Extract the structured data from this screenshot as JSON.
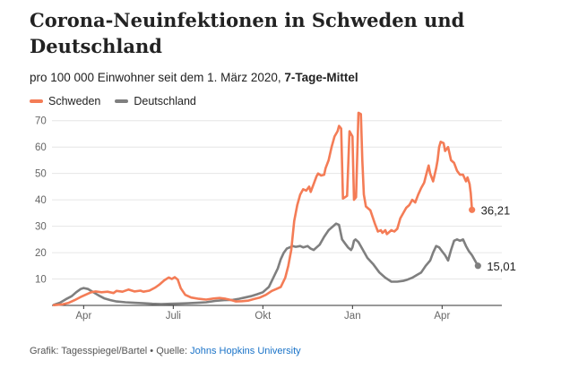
{
  "title": "Corona-Neuinfektionen in Schweden und Deutschland",
  "subtitle": {
    "text": "pro 100 000 Einwohner seit dem 1. März 2020, ",
    "bold": "7-Tage-Mittel"
  },
  "footer": {
    "prefix": "Grafik: Tagesspiegel/Bartel • Quelle: ",
    "source": "Johns Hopkins University"
  },
  "colors": {
    "schweden": "#f47c56",
    "deutschland": "#7f7f7f"
  },
  "chart_data": {
    "type": "line",
    "title": "Corona-Neuinfektionen in Schweden und Deutschland",
    "xlabel": "",
    "ylabel": "",
    "x_unit": "Monate seit 1. März 2020",
    "xlim": [
      0,
      15
    ],
    "ylim": [
      0,
      75
    ],
    "yticks": [
      10,
      20,
      30,
      40,
      50,
      60,
      70
    ],
    "xticks": [
      {
        "label": "Apr",
        "x": 1
      },
      {
        "label": "Juli",
        "x": 4
      },
      {
        "label": "Okt",
        "x": 7
      },
      {
        "label": "Jan",
        "x": 10
      },
      {
        "label": "Apr",
        "x": 13
      }
    ],
    "grid": true,
    "legend": "top-left",
    "series": [
      {
        "name": "Schweden",
        "color": "#f47c56",
        "end_label": "36,21",
        "points": [
          [
            0.0,
            0.1
          ],
          [
            0.3,
            0.4
          ],
          [
            0.5,
            1.0
          ],
          [
            0.7,
            2.0
          ],
          [
            0.9,
            3.2
          ],
          [
            1.1,
            4.2
          ],
          [
            1.25,
            5.0
          ],
          [
            1.4,
            5.3
          ],
          [
            1.6,
            5.0
          ],
          [
            1.8,
            5.2
          ],
          [
            2.0,
            4.7
          ],
          [
            2.1,
            5.5
          ],
          [
            2.3,
            5.2
          ],
          [
            2.5,
            6.0
          ],
          [
            2.7,
            5.3
          ],
          [
            2.9,
            5.6
          ],
          [
            3.0,
            5.2
          ],
          [
            3.2,
            5.6
          ],
          [
            3.4,
            6.8
          ],
          [
            3.55,
            8.0
          ],
          [
            3.7,
            9.5
          ],
          [
            3.85,
            10.6
          ],
          [
            3.95,
            10.0
          ],
          [
            4.05,
            10.7
          ],
          [
            4.15,
            9.8
          ],
          [
            4.25,
            6.5
          ],
          [
            4.4,
            4.0
          ],
          [
            4.6,
            3.0
          ],
          [
            4.85,
            2.5
          ],
          [
            5.1,
            2.2
          ],
          [
            5.35,
            2.6
          ],
          [
            5.55,
            2.8
          ],
          [
            5.75,
            2.5
          ],
          [
            5.95,
            2.0
          ],
          [
            6.1,
            1.5
          ],
          [
            6.3,
            1.6
          ],
          [
            6.5,
            1.8
          ],
          [
            6.7,
            2.4
          ],
          [
            6.9,
            3.0
          ],
          [
            7.1,
            4.0
          ],
          [
            7.3,
            5.5
          ],
          [
            7.45,
            6.2
          ],
          [
            7.6,
            7.0
          ],
          [
            7.75,
            10.5
          ],
          [
            7.85,
            15.0
          ],
          [
            7.95,
            21.0
          ],
          [
            8.05,
            32.0
          ],
          [
            8.15,
            38.0
          ],
          [
            8.25,
            42.0
          ],
          [
            8.35,
            44.0
          ],
          [
            8.45,
            43.5
          ],
          [
            8.55,
            45.0
          ],
          [
            8.6,
            43.0
          ],
          [
            8.7,
            46.0
          ],
          [
            8.8,
            49.0
          ],
          [
            8.85,
            50.0
          ],
          [
            8.95,
            49.2
          ],
          [
            9.05,
            49.5
          ],
          [
            9.1,
            52.0
          ],
          [
            9.2,
            55.0
          ],
          [
            9.3,
            60.0
          ],
          [
            9.4,
            64.0
          ],
          [
            9.5,
            66.0
          ],
          [
            9.55,
            68.0
          ],
          [
            9.62,
            67.0
          ],
          [
            9.68,
            40.5
          ],
          [
            9.75,
            41.0
          ],
          [
            9.82,
            41.5
          ],
          [
            9.9,
            66.0
          ],
          [
            10.0,
            64.0
          ],
          [
            10.05,
            40.0
          ],
          [
            10.12,
            41.0
          ],
          [
            10.2,
            73.0
          ],
          [
            10.28,
            72.5
          ],
          [
            10.33,
            55.0
          ],
          [
            10.38,
            42.0
          ],
          [
            10.45,
            37.5
          ],
          [
            10.6,
            36.0
          ],
          [
            10.75,
            31.0
          ],
          [
            10.85,
            28.0
          ],
          [
            10.95,
            28.5
          ],
          [
            11.0,
            27.5
          ],
          [
            11.1,
            28.5
          ],
          [
            11.15,
            27.0
          ],
          [
            11.3,
            28.5
          ],
          [
            11.4,
            28.0
          ],
          [
            11.5,
            29.0
          ],
          [
            11.6,
            33.0
          ],
          [
            11.7,
            35.0
          ],
          [
            11.8,
            37.0
          ],
          [
            11.9,
            38.0
          ],
          [
            12.0,
            40.0
          ],
          [
            12.1,
            39.0
          ],
          [
            12.2,
            42.0
          ],
          [
            12.3,
            44.5
          ],
          [
            12.4,
            46.5
          ],
          [
            12.5,
            51.0
          ],
          [
            12.55,
            53.0
          ],
          [
            12.6,
            50.0
          ],
          [
            12.7,
            47.0
          ],
          [
            12.8,
            52.0
          ],
          [
            12.85,
            55.0
          ],
          [
            12.9,
            60.0
          ],
          [
            12.95,
            62.0
          ],
          [
            13.05,
            61.5
          ],
          [
            13.1,
            58.5
          ],
          [
            13.2,
            60.0
          ],
          [
            13.3,
            55.0
          ],
          [
            13.4,
            54.0
          ],
          [
            13.5,
            51.0
          ],
          [
            13.6,
            49.5
          ],
          [
            13.7,
            49.5
          ],
          [
            13.8,
            47.0
          ],
          [
            13.85,
            48.5
          ],
          [
            13.92,
            46.0
          ],
          [
            13.96,
            42.5
          ],
          [
            14.0,
            36.21
          ]
        ]
      },
      {
        "name": "Deutschland",
        "color": "#7f7f7f",
        "end_label": "15,01",
        "points": [
          [
            0.0,
            0.2
          ],
          [
            0.2,
            1.0
          ],
          [
            0.4,
            2.3
          ],
          [
            0.6,
            3.5
          ],
          [
            0.75,
            5.0
          ],
          [
            0.9,
            6.2
          ],
          [
            1.0,
            6.6
          ],
          [
            1.15,
            6.2
          ],
          [
            1.3,
            5.2
          ],
          [
            1.5,
            3.8
          ],
          [
            1.7,
            2.6
          ],
          [
            1.9,
            2.0
          ],
          [
            2.1,
            1.5
          ],
          [
            2.4,
            1.2
          ],
          [
            2.7,
            1.0
          ],
          [
            3.0,
            0.8
          ],
          [
            3.3,
            0.6
          ],
          [
            3.6,
            0.5
          ],
          [
            3.9,
            0.6
          ],
          [
            4.2,
            0.7
          ],
          [
            4.5,
            0.8
          ],
          [
            4.8,
            1.0
          ],
          [
            5.1,
            1.2
          ],
          [
            5.4,
            1.7
          ],
          [
            5.7,
            2.0
          ],
          [
            6.0,
            2.1
          ],
          [
            6.2,
            2.5
          ],
          [
            6.4,
            3.0
          ],
          [
            6.6,
            3.5
          ],
          [
            6.8,
            4.2
          ],
          [
            7.0,
            5.0
          ],
          [
            7.2,
            7.0
          ],
          [
            7.35,
            10.5
          ],
          [
            7.5,
            14.0
          ],
          [
            7.6,
            17.5
          ],
          [
            7.7,
            20.0
          ],
          [
            7.8,
            21.5
          ],
          [
            7.9,
            22.0
          ],
          [
            8.0,
            22.5
          ],
          [
            8.1,
            22.2
          ],
          [
            8.25,
            22.5
          ],
          [
            8.35,
            22.0
          ],
          [
            8.5,
            22.5
          ],
          [
            8.6,
            21.5
          ],
          [
            8.7,
            21.0
          ],
          [
            8.8,
            22.0
          ],
          [
            8.9,
            23.0
          ],
          [
            9.05,
            26.0
          ],
          [
            9.2,
            28.5
          ],
          [
            9.35,
            30.0
          ],
          [
            9.45,
            31.0
          ],
          [
            9.55,
            30.5
          ],
          [
            9.65,
            25.0
          ],
          [
            9.75,
            23.5
          ],
          [
            9.85,
            22.0
          ],
          [
            9.95,
            21.0
          ],
          [
            10.0,
            22.0
          ],
          [
            10.05,
            24.5
          ],
          [
            10.1,
            25.0
          ],
          [
            10.2,
            24.0
          ],
          [
            10.35,
            21.0
          ],
          [
            10.5,
            18.0
          ],
          [
            10.7,
            15.5
          ],
          [
            10.9,
            12.5
          ],
          [
            11.1,
            10.5
          ],
          [
            11.3,
            9.0
          ],
          [
            11.5,
            9.0
          ],
          [
            11.7,
            9.3
          ],
          [
            11.85,
            9.8
          ],
          [
            12.0,
            10.5
          ],
          [
            12.15,
            11.5
          ],
          [
            12.3,
            12.5
          ],
          [
            12.45,
            15.0
          ],
          [
            12.6,
            17.0
          ],
          [
            12.7,
            20.0
          ],
          [
            12.8,
            22.5
          ],
          [
            12.9,
            22.0
          ],
          [
            13.0,
            20.5
          ],
          [
            13.1,
            19.0
          ],
          [
            13.2,
            17.0
          ],
          [
            13.3,
            21.0
          ],
          [
            13.4,
            24.5
          ],
          [
            13.5,
            25.0
          ],
          [
            13.6,
            24.5
          ],
          [
            13.7,
            25.0
          ],
          [
            13.8,
            22.5
          ],
          [
            13.9,
            20.5
          ],
          [
            14.0,
            19.0
          ],
          [
            14.1,
            17.0
          ],
          [
            14.2,
            15.01
          ]
        ]
      }
    ]
  }
}
